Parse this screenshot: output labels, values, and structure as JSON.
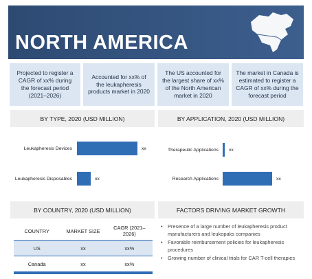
{
  "header": {
    "title": "NORTH AMERICA"
  },
  "highlights": [
    "Projected to register a CAGR of xx% during the forecast period (2021–2026)",
    "Accounted for xx% of the leukapheresis products market in 2020",
    "The US accounted for the largest share of xx% of the North American market in 2020",
    "The market in Canada is estimated to register a CAGR of xx% during the forecast period"
  ],
  "chart_data": [
    {
      "type": "bar",
      "orientation": "horizontal",
      "title": "BY TYPE, 2020 (USD MILLION)",
      "categories": [
        "Leukapheresis Devices",
        "Leukapheresis Disposables"
      ],
      "values": [
        88,
        20
      ],
      "value_labels": [
        "xx",
        "xx"
      ],
      "color": "#2f6db5"
    },
    {
      "type": "bar",
      "orientation": "horizontal",
      "title": "BY APPLICATION, 2020 (USD MILLION)",
      "categories": [
        "Therapeutic Applications",
        "Research Applications"
      ],
      "values": [
        3,
        72
      ],
      "value_labels": [
        "xx",
        "xx"
      ],
      "color": "#2f6db5"
    }
  ],
  "country_table": {
    "title": "BY COUNTRY, 2020 (USD MILLION)",
    "columns": [
      "COUNTRY",
      "MARKET SIZE",
      "CAGR (2021–2026)"
    ],
    "rows": [
      [
        "US",
        "xx",
        "xx%"
      ],
      [
        "Canada",
        "xx",
        "xx%"
      ]
    ]
  },
  "factors": {
    "title": "FACTORS DRIVING MARKET GROWTH",
    "items": [
      "Presence of a large number of leukapheresis product manufacturers and leukopaks companies",
      "Favorable reimbursement policies for leukapheresis procedures",
      "Growing number of clinical trials for CAR T-cell therapies"
    ]
  }
}
